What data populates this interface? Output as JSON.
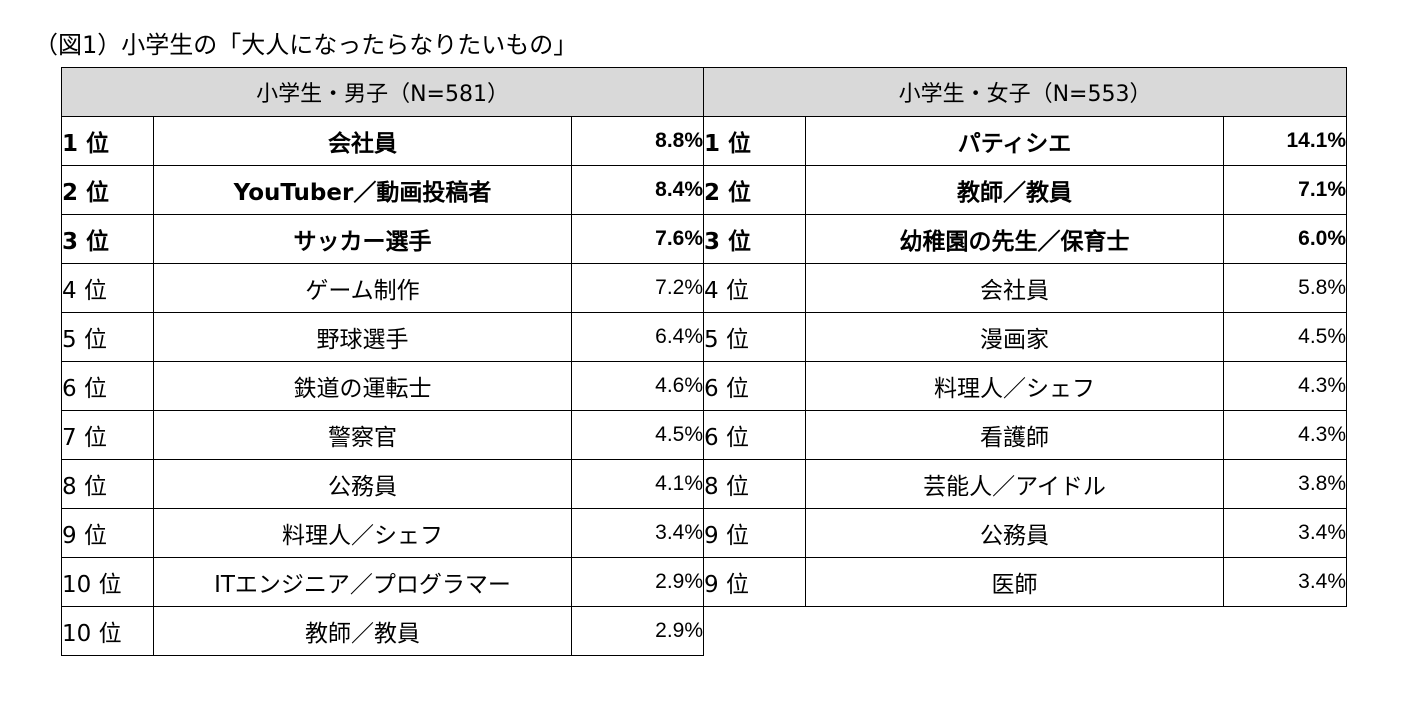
{
  "caption": "（図1）小学生の「大人になったらなりたいもの」",
  "boys": {
    "header": "小学生・男子（N=581）",
    "rows": [
      {
        "rank": "1 位",
        "job": "会社員",
        "pct": "8.8%"
      },
      {
        "rank": "2 位",
        "job": "YouTuber／動画投稿者",
        "pct": "8.4%"
      },
      {
        "rank": "3 位",
        "job": "サッカー選手",
        "pct": "7.6%"
      },
      {
        "rank": "4 位",
        "job": "ゲーム制作",
        "pct": "7.2%"
      },
      {
        "rank": "5 位",
        "job": "野球選手",
        "pct": "6.4%"
      },
      {
        "rank": "6 位",
        "job": "鉄道の運転士",
        "pct": "4.6%"
      },
      {
        "rank": "7 位",
        "job": "警察官",
        "pct": "4.5%"
      },
      {
        "rank": "8 位",
        "job": "公務員",
        "pct": "4.1%"
      },
      {
        "rank": "9 位",
        "job": "料理人／シェフ",
        "pct": "3.4%"
      },
      {
        "rank": "10 位",
        "job": "ITエンジニア／プログラマー",
        "pct": "2.9%"
      },
      {
        "rank": "10 位",
        "job": "教師／教員",
        "pct": "2.9%"
      }
    ]
  },
  "girls": {
    "header": "小学生・女子（N=553）",
    "rows": [
      {
        "rank": "1 位",
        "job": "パティシエ",
        "pct": "14.1%"
      },
      {
        "rank": "2 位",
        "job": "教師／教員",
        "pct": "7.1%"
      },
      {
        "rank": "3 位",
        "job": "幼稚園の先生／保育士",
        "pct": "6.0%"
      },
      {
        "rank": "4 位",
        "job": "会社員",
        "pct": "5.8%"
      },
      {
        "rank": "5 位",
        "job": "漫画家",
        "pct": "4.5%"
      },
      {
        "rank": "6 位",
        "job": "料理人／シェフ",
        "pct": "4.3%"
      },
      {
        "rank": "6 位",
        "job": "看護師",
        "pct": "4.3%"
      },
      {
        "rank": "8 位",
        "job": "芸能人／アイドル",
        "pct": "3.8%"
      },
      {
        "rank": "9 位",
        "job": "公務員",
        "pct": "3.4%"
      },
      {
        "rank": "9 位",
        "job": "医師",
        "pct": "3.4%"
      }
    ]
  }
}
